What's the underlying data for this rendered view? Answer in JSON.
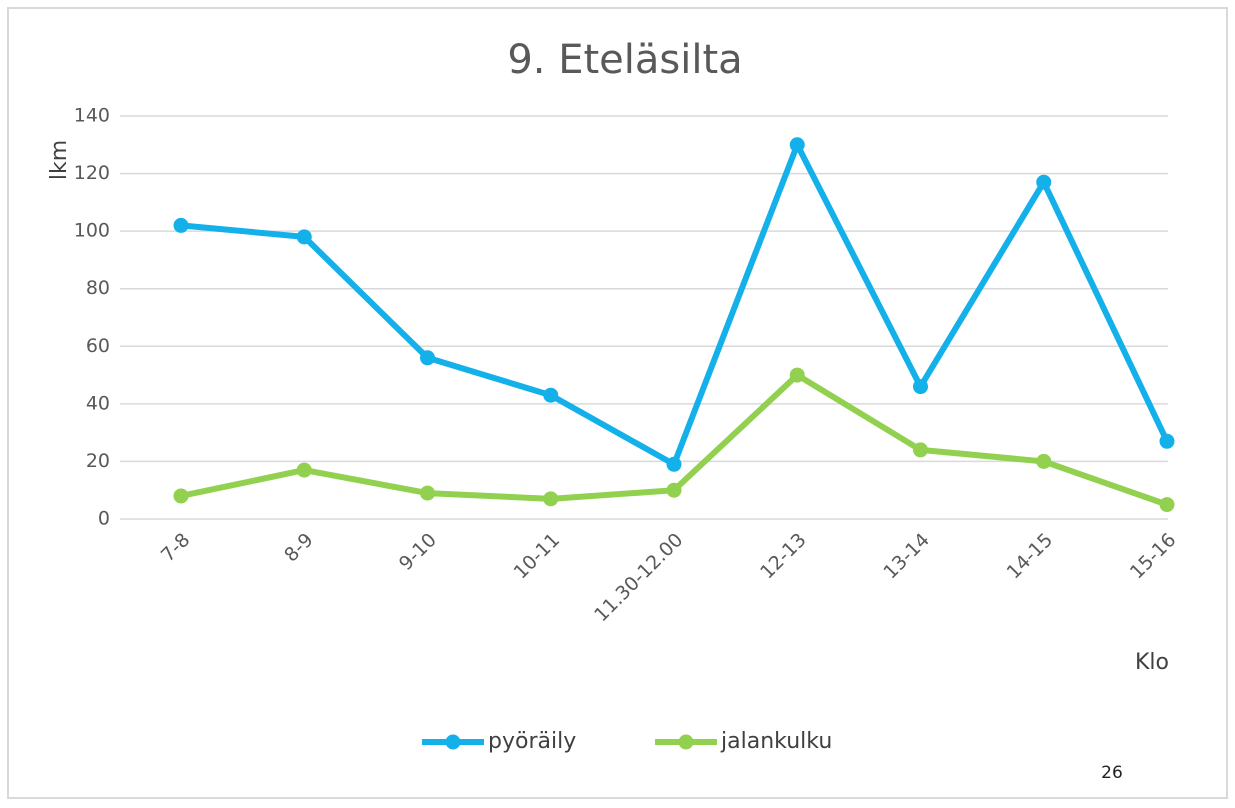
{
  "chart_data": {
    "type": "line",
    "title": "9. Eteläsilta",
    "y_label": "lkm",
    "x_label": "Klo",
    "categories": [
      "7-8",
      "8-9",
      "9-10",
      "10-11",
      "11.30-12.00",
      "12-13",
      "13-14",
      "14-15",
      "15-16"
    ],
    "series": [
      {
        "name": "pyöräily",
        "color": "#13b0ea",
        "values": [
          102,
          98,
          56,
          43,
          19,
          130,
          46,
          117,
          27
        ]
      },
      {
        "name": "jalankulku",
        "color": "#92d050",
        "values": [
          8,
          17,
          9,
          7,
          10,
          50,
          24,
          20,
          5
        ]
      }
    ],
    "ylim": [
      0,
      140
    ],
    "yticks": [
      0,
      20,
      40,
      60,
      80,
      100,
      120,
      140
    ],
    "grid": true,
    "legend": "bottom",
    "annotations": [
      "26"
    ]
  }
}
